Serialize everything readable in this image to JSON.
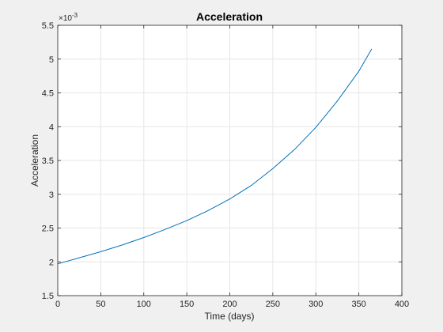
{
  "chart_data": {
    "type": "line",
    "title": "Acceleration",
    "xlabel": "Time (days)",
    "ylabel": "Acceleration",
    "y_exponent_label": "×10",
    "y_exponent_power": "-3",
    "xlim": [
      0,
      400
    ],
    "ylim": [
      1.5,
      5.5
    ],
    "x_ticks": [
      0,
      50,
      100,
      150,
      200,
      250,
      300,
      350,
      400
    ],
    "x_tick_labels": [
      "0",
      "50",
      "100",
      "150",
      "200",
      "250",
      "300",
      "350",
      "400"
    ],
    "y_ticks": [
      1.5,
      2,
      2.5,
      3,
      3.5,
      4,
      4.5,
      5,
      5.5
    ],
    "y_tick_labels": [
      "1.5",
      "2",
      "2.5",
      "3",
      "3.5",
      "4",
      "4.5",
      "5",
      "5.5"
    ],
    "grid": true,
    "series": [
      {
        "color": "#0072bd",
        "x": [
          0,
          25,
          50,
          75,
          100,
          125,
          150,
          175,
          200,
          225,
          250,
          275,
          300,
          325,
          350,
          365
        ],
        "y": [
          1.97,
          2.06,
          2.15,
          2.25,
          2.36,
          2.48,
          2.61,
          2.76,
          2.93,
          3.13,
          3.38,
          3.66,
          3.99,
          4.38,
          4.82,
          5.15
        ]
      }
    ]
  }
}
